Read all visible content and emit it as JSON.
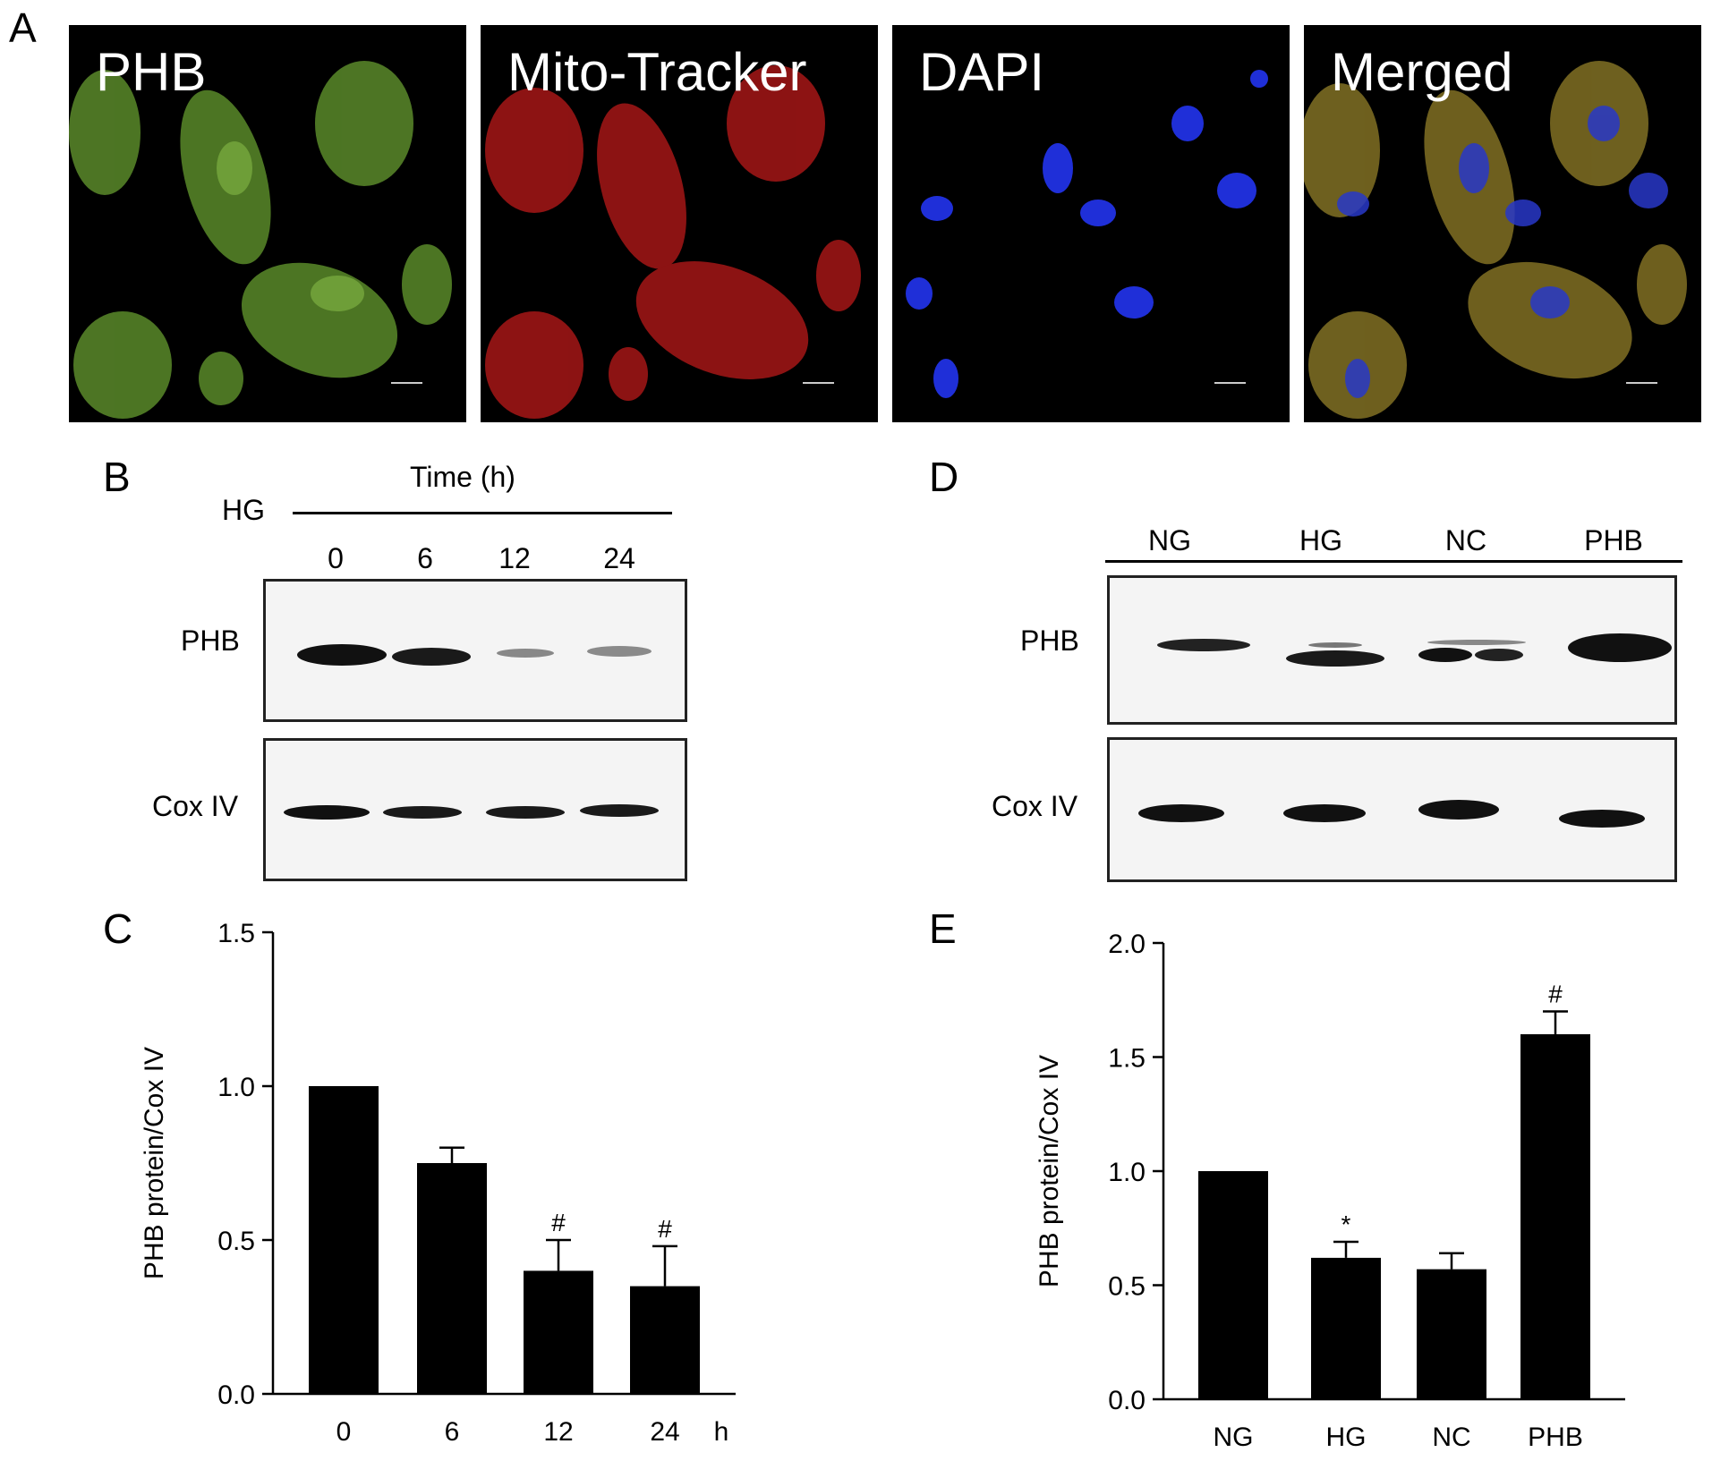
{
  "panels": {
    "A": "A",
    "B": "B",
    "C": "C",
    "D": "D",
    "E": "E"
  },
  "microscopy": {
    "captions": [
      "PHB",
      "Mito-Tracker",
      "DAPI",
      "Merged"
    ]
  },
  "blot_b": {
    "header": "Time (h)",
    "treatment": "HG",
    "lanes": [
      "0",
      "6",
      "12",
      "24"
    ],
    "rows": [
      "PHB",
      "Cox IV"
    ]
  },
  "blot_d": {
    "lanes": [
      "NG",
      "HG",
      "NC",
      "PHB"
    ],
    "rows": [
      "PHB",
      "Cox IV"
    ]
  },
  "chart_data": [
    {
      "type": "bar",
      "panel": "C",
      "categories": [
        "0",
        "6",
        "12",
        "24"
      ],
      "values": [
        1.0,
        0.75,
        0.4,
        0.35
      ],
      "errors": [
        0,
        0.05,
        0.1,
        0.13
      ],
      "annotations": [
        "",
        "",
        "#",
        "#"
      ],
      "xlabel": "h",
      "ylabel": "PHB protein/Cox IV",
      "ylim": [
        0,
        1.5
      ],
      "yticks": [
        "0.0",
        "0.5",
        "1.0",
        "1.5"
      ],
      "bar_color": "#000000"
    },
    {
      "type": "bar",
      "panel": "E",
      "categories": [
        "NG",
        "HG",
        "NC",
        "PHB"
      ],
      "values": [
        1.0,
        0.62,
        0.57,
        1.6
      ],
      "errors": [
        0,
        0.07,
        0.07,
        0.1
      ],
      "annotations": [
        "",
        "*",
        "",
        "#"
      ],
      "xlabel": "",
      "ylabel": "PHB protein/Cox IV",
      "ylim": [
        0,
        2.0
      ],
      "yticks": [
        "0.0",
        "0.5",
        "1.0",
        "1.5",
        "2.0"
      ],
      "bar_color": "#000000"
    }
  ]
}
